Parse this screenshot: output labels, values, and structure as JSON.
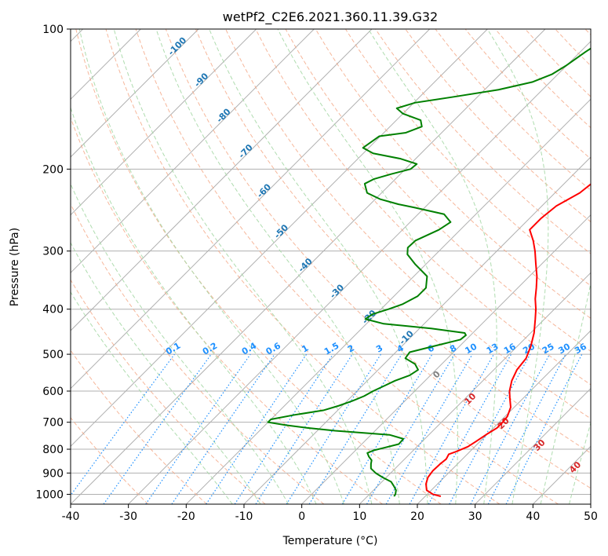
{
  "chart_data": {
    "type": "line",
    "subtype": "skew-t log-p diagram",
    "title": "wetPf2_C2E6.2021.360.11.39.G32",
    "xlabel": "Temperature (°C)",
    "ylabel": "Pressure (hPa)",
    "xlim": [
      -40,
      50
    ],
    "ylim": [
      1050,
      100
    ],
    "y_scale": "log",
    "skew_degrees": 45,
    "x_ticks": [
      "-40",
      "-30",
      "-20",
      "-10",
      "0",
      "10",
      "20",
      "30",
      "40",
      "50"
    ],
    "y_ticks": [
      "100",
      "200",
      "300",
      "400",
      "500",
      "600",
      "700",
      "800",
      "900",
      "1000"
    ],
    "grid": true,
    "colors": {
      "temperature": "#ff0000",
      "dewpoint": "#008000",
      "isotherm": "#b0b0b0",
      "dry_adiabat": "#f4a582",
      "moist_adiabat": "#a6d8a6",
      "mixing_ratio": "#1e90ff",
      "dry_label": "#1f77b4",
      "moist_label_cold": "#808080",
      "moist_label_warm": "#d62728"
    },
    "series": [
      {
        "name": "",
        "role": "temperature",
        "points": [
          [
            1010,
            22.7
          ],
          [
            1000,
            21.0
          ],
          [
            980,
            19.2
          ],
          [
            950,
            18.0
          ],
          [
            920,
            17.2
          ],
          [
            890,
            16.9
          ],
          [
            860,
            17.0
          ],
          [
            840,
            17.2
          ],
          [
            820,
            16.8
          ],
          [
            810,
            17.6
          ],
          [
            790,
            18.8
          ],
          [
            770,
            19.3
          ],
          [
            740,
            20.0
          ],
          [
            720,
            20.6
          ],
          [
            700,
            20.6
          ],
          [
            680,
            20.4
          ],
          [
            650,
            19.4
          ],
          [
            620,
            17.6
          ],
          [
            600,
            16.4
          ],
          [
            570,
            15.0
          ],
          [
            540,
            14.0
          ],
          [
            510,
            13.6
          ],
          [
            480,
            12.3
          ],
          [
            450,
            10.6
          ],
          [
            420,
            8.4
          ],
          [
            400,
            6.8
          ],
          [
            380,
            4.9
          ],
          [
            360,
            3.2
          ],
          [
            340,
            1.3
          ],
          [
            320,
            -1.0
          ],
          [
            300,
            -3.4
          ],
          [
            285,
            -5.5
          ],
          [
            270,
            -8.0
          ],
          [
            255,
            -8.0
          ],
          [
            240,
            -7.5
          ],
          [
            225,
            -5.7
          ],
          [
            215,
            -5.3
          ],
          [
            205,
            -5.5
          ],
          [
            195,
            -5.3
          ],
          [
            185,
            -4.0
          ],
          [
            175,
            -4.4
          ],
          [
            165,
            -6.1
          ],
          [
            155,
            -8.0
          ],
          [
            145,
            -10.1
          ],
          [
            135,
            -12.3
          ],
          [
            125,
            -14.4
          ],
          [
            115,
            -16.7
          ],
          [
            107,
            -18.8
          ],
          [
            100,
            -20.7
          ]
        ]
      },
      {
        "name": "",
        "role": "dewpoint",
        "points": [
          [
            1010,
            14.6
          ],
          [
            1000,
            14.5
          ],
          [
            980,
            13.9
          ],
          [
            960,
            12.8
          ],
          [
            940,
            11.6
          ],
          [
            920,
            9.4
          ],
          [
            900,
            7.4
          ],
          [
            880,
            5.8
          ],
          [
            860,
            5.0
          ],
          [
            845,
            4.5
          ],
          [
            830,
            3.4
          ],
          [
            815,
            2.5
          ],
          [
            805,
            3.1
          ],
          [
            795,
            4.4
          ],
          [
            780,
            6.4
          ],
          [
            760,
            6.3
          ],
          [
            745,
            3.2
          ],
          [
            730,
            -6.9
          ],
          [
            720,
            -12.2
          ],
          [
            710,
            -16.4
          ],
          [
            700,
            -20.0
          ],
          [
            690,
            -20.0
          ],
          [
            675,
            -16.7
          ],
          [
            660,
            -12.5
          ],
          [
            645,
            -10.6
          ],
          [
            630,
            -9.1
          ],
          [
            615,
            -7.9
          ],
          [
            600,
            -7.2
          ],
          [
            585,
            -6.2
          ],
          [
            570,
            -5.2
          ],
          [
            555,
            -3.6
          ],
          [
            540,
            -3.1
          ],
          [
            525,
            -4.6
          ],
          [
            510,
            -7.3
          ],
          [
            495,
            -7.6
          ],
          [
            480,
            -4.4
          ],
          [
            465,
            -1.0
          ],
          [
            455,
            -0.8
          ],
          [
            450,
            -1.4
          ],
          [
            440,
            -8.0
          ],
          [
            430,
            -17.0
          ],
          [
            420,
            -21.0
          ],
          [
            410,
            -20.6
          ],
          [
            400,
            -18.7
          ],
          [
            390,
            -17.1
          ],
          [
            375,
            -15.9
          ],
          [
            360,
            -15.9
          ],
          [
            340,
            -17.7
          ],
          [
            320,
            -21.9
          ],
          [
            305,
            -24.9
          ],
          [
            295,
            -26.0
          ],
          [
            285,
            -25.9
          ],
          [
            270,
            -23.7
          ],
          [
            260,
            -23.0
          ],
          [
            250,
            -25.5
          ],
          [
            242,
            -31.7
          ],
          [
            238,
            -35.1
          ],
          [
            232,
            -39.2
          ],
          [
            225,
            -42.5
          ],
          [
            215,
            -44.5
          ],
          [
            210,
            -43.7
          ],
          [
            205,
            -41.6
          ],
          [
            200,
            -39.1
          ],
          [
            195,
            -38.9
          ],
          [
            190,
            -42.6
          ],
          [
            185,
            -48.3
          ],
          [
            180,
            -51.0
          ],
          [
            175,
            -50.6
          ],
          [
            170,
            -50.2
          ],
          [
            167,
            -46.2
          ],
          [
            162,
            -44.5
          ],
          [
            157,
            -45.8
          ],
          [
            152,
            -50.0
          ],
          [
            148,
            -52.0
          ],
          [
            144,
            -49.8
          ],
          [
            140,
            -44.3
          ],
          [
            135,
            -37.6
          ],
          [
            130,
            -33.1
          ],
          [
            125,
            -31.0
          ],
          [
            120,
            -30.1
          ],
          [
            112,
            -29.1
          ],
          [
            106,
            -28.1
          ],
          [
            100,
            -27.3
          ]
        ]
      }
    ],
    "dry_adiabat_labels": [
      "-100",
      "-90",
      "-80",
      "-70",
      "-60",
      "-50",
      "-40",
      "-30",
      "-20",
      "-10"
    ],
    "moist_adiabat_labels": [
      "0",
      "10",
      "20",
      "30",
      "40"
    ],
    "mixing_ratio_labels": [
      "0.1",
      "0.2",
      "0.4",
      "0.6",
      "1",
      "1.5",
      "2",
      "3",
      "4",
      "6",
      "8",
      "10",
      "13",
      "16",
      "20",
      "25",
      "30",
      "36"
    ]
  }
}
